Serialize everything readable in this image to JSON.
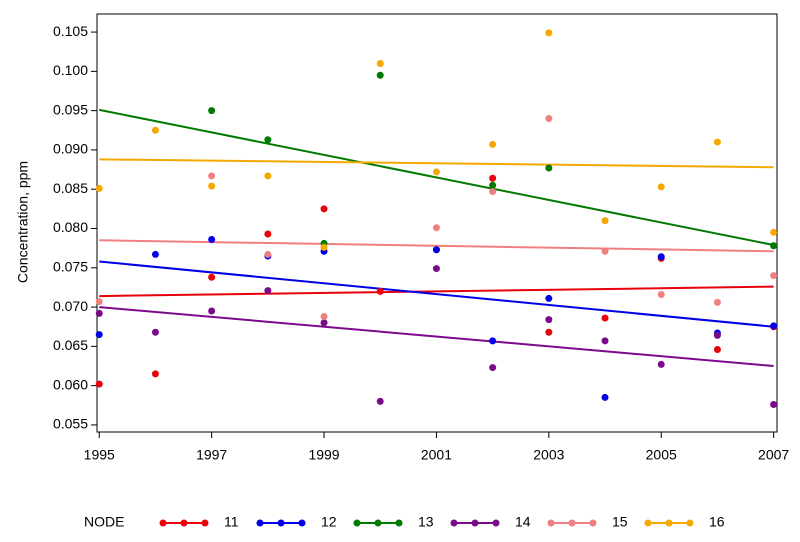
{
  "chart_data": {
    "type": "scatter",
    "ylabel": "Concentration, ppm",
    "legend_title": "NODE",
    "x": [
      1995,
      1996,
      1997,
      1998,
      1999,
      2000,
      2001,
      2002,
      2003,
      2004,
      2005,
      2006,
      2007
    ],
    "xlim": [
      1994.96,
      2007.06
    ],
    "xticks": [
      1995,
      1997,
      1999,
      2001,
      2003,
      2005,
      2007
    ],
    "ylim": [
      0.0541,
      0.1073
    ],
    "yticks": [
      0.055,
      {
        "value": 0.06,
        "label": "0.060"
      },
      0.065,
      {
        "value": 0.07,
        "label": "0.070"
      },
      0.075,
      {
        "value": 0.08,
        "label": "0.080"
      },
      0.085,
      {
        "value": 0.09,
        "label": "0.090"
      },
      0.095,
      {
        "value": 0.1,
        "label": "0.100"
      },
      0.105
    ],
    "trend_x": [
      1995,
      2007
    ],
    "series": [
      {
        "name": "11",
        "color": "#e8000b",
        "values": [
          0.0602,
          0.0615,
          0.0738,
          0.0793,
          0.0825,
          0.072,
          0.0773,
          0.0864,
          0.0668,
          0.0686,
          0.0762,
          0.0646,
          0.0675
        ],
        "trend": [
          0.0714,
          0.0726
        ]
      },
      {
        "name": "12",
        "color": "#0000e8",
        "values": [
          0.0665,
          0.0767,
          0.0786,
          0.0765,
          0.0771,
          null,
          0.0773,
          0.0657,
          0.0711,
          0.0585,
          0.0764,
          0.0667,
          0.0676
        ],
        "trend": [
          0.0758,
          0.0675
        ]
      },
      {
        "name": "13",
        "color": "#007a00",
        "values": [
          null,
          null,
          0.095,
          0.0913,
          0.0781,
          0.0995,
          null,
          0.0855,
          0.0877,
          null,
          null,
          null,
          0.0778
        ],
        "trend": [
          0.0951,
          0.0779
        ]
      },
      {
        "name": "14",
        "color": "#7b0a8a",
        "values": [
          0.0692,
          0.0668,
          0.0695,
          0.0721,
          0.068,
          0.058,
          0.0749,
          0.0623,
          0.0684,
          0.0657,
          0.0627,
          0.0664,
          0.0576
        ],
        "trend": [
          0.07,
          0.0625
        ]
      },
      {
        "name": "15",
        "color": "#f08080",
        "values": [
          0.0707,
          null,
          0.0867,
          0.0767,
          0.0688,
          null,
          0.0801,
          0.0847,
          0.094,
          0.0771,
          0.0716,
          0.0706,
          0.074
        ],
        "trend": [
          0.0785,
          0.0771
        ]
      },
      {
        "name": "16",
        "color": "#f5a800",
        "values": [
          0.0851,
          0.0925,
          0.0854,
          0.0867,
          0.0776,
          0.101,
          0.0872,
          0.0907,
          0.1049,
          0.081,
          0.0853,
          0.091,
          0.0795
        ],
        "trend": [
          0.0888,
          0.0878
        ]
      }
    ]
  }
}
